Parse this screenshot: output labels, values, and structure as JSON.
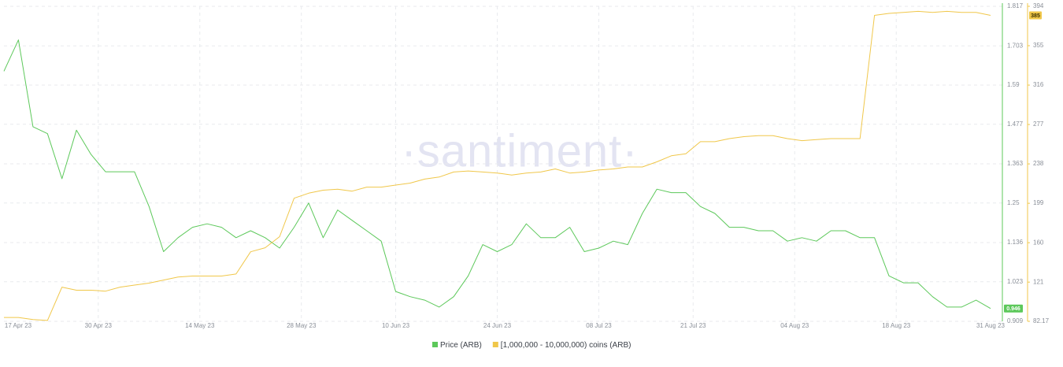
{
  "chart_data": {
    "type": "line",
    "watermark": "·santiment·",
    "x": [
      "17 Apr 23",
      "19 Apr 23",
      "21 Apr 23",
      "23 Apr 23",
      "25 Apr 23",
      "27 Apr 23",
      "29 Apr 23",
      "01 May 23",
      "03 May 23",
      "05 May 23",
      "07 May 23",
      "09 May 23",
      "11 May 23",
      "13 May 23",
      "15 May 23",
      "17 May 23",
      "19 May 23",
      "21 May 23",
      "23 May 23",
      "25 May 23",
      "27 May 23",
      "29 May 23",
      "31 May 23",
      "02 Jun 23",
      "04 Jun 23",
      "06 Jun 23",
      "08 Jun 23",
      "10 Jun 23",
      "12 Jun 23",
      "14 Jun 23",
      "16 Jun 23",
      "18 Jun 23",
      "20 Jun 23",
      "22 Jun 23",
      "24 Jun 23",
      "26 Jun 23",
      "28 Jun 23",
      "30 Jun 23",
      "02 Jul 23",
      "04 Jul 23",
      "06 Jul 23",
      "08 Jul 23",
      "10 Jul 23",
      "12 Jul 23",
      "14 Jul 23",
      "16 Jul 23",
      "18 Jul 23",
      "20 Jul 23",
      "22 Jul 23",
      "24 Jul 23",
      "26 Jul 23",
      "28 Jul 23",
      "30 Jul 23",
      "01 Aug 23",
      "03 Aug 23",
      "05 Aug 23",
      "07 Aug 23",
      "09 Aug 23",
      "11 Aug 23",
      "13 Aug 23",
      "15 Aug 23",
      "17 Aug 23",
      "19 Aug 23",
      "21 Aug 23",
      "23 Aug 23",
      "25 Aug 23",
      "27 Aug 23",
      "29 Aug 23",
      "31 Aug 23"
    ],
    "xlim": [
      "17 Apr 23",
      "31 Aug 23"
    ],
    "xticks": [
      "17 Apr 23",
      "30 Apr 23",
      "14 May 23",
      "28 May 23",
      "10 Jun 23",
      "24 Jun 23",
      "08 Jul 23",
      "21 Jul 23",
      "04 Aug 23",
      "18 Aug 23",
      "31 Aug 23"
    ],
    "series": [
      {
        "name": "Price (ARB)",
        "color": "#5cc85a",
        "values": [
          1.63,
          1.72,
          1.47,
          1.45,
          1.32,
          1.46,
          1.39,
          1.34,
          1.34,
          1.34,
          1.24,
          1.11,
          1.15,
          1.18,
          1.19,
          1.18,
          1.15,
          1.17,
          1.15,
          1.12,
          1.18,
          1.25,
          1.15,
          1.23,
          1.2,
          1.17,
          1.14,
          0.995,
          0.98,
          0.97,
          0.95,
          0.98,
          1.04,
          1.13,
          1.11,
          1.13,
          1.19,
          1.15,
          1.15,
          1.18,
          1.11,
          1.12,
          1.14,
          1.13,
          1.22,
          1.29,
          1.28,
          1.28,
          1.24,
          1.22,
          1.18,
          1.18,
          1.17,
          1.17,
          1.14,
          1.15,
          1.14,
          1.17,
          1.17,
          1.15,
          1.15,
          1.04,
          1.02,
          1.02,
          0.98,
          0.95,
          0.95,
          0.97,
          0.946
        ]
      },
      {
        "name": "[1,000,000 - 10,000,000) coins (ARB)",
        "color": "#f0c74a",
        "axis": "y2",
        "values": [
          86,
          86,
          84,
          83,
          116,
          113,
          113,
          112,
          116,
          118,
          120,
          123,
          126,
          127,
          127,
          127,
          129,
          151,
          155,
          166,
          204,
          209,
          212,
          213,
          211,
          215,
          215,
          217,
          219,
          223,
          225,
          230,
          231,
          230,
          229,
          227,
          229,
          230,
          233,
          229,
          230,
          232,
          233,
          235,
          235,
          240,
          246,
          248,
          260,
          260,
          263,
          265,
          266,
          266,
          263,
          261,
          262,
          263,
          263,
          263,
          385,
          387,
          388,
          389,
          388,
          389,
          388,
          388,
          385
        ]
      }
    ],
    "ylim": [
      0.909,
      1.817
    ],
    "yticks": [
      0.909,
      1.023,
      1.136,
      1.25,
      1.363,
      1.477,
      1.59,
      1.703,
      1.817
    ],
    "y2lim": [
      82.17,
      394
    ],
    "y2ticks": [
      82.17,
      121,
      160,
      199,
      238,
      277,
      316,
      355,
      394
    ],
    "grid": true
  }
}
